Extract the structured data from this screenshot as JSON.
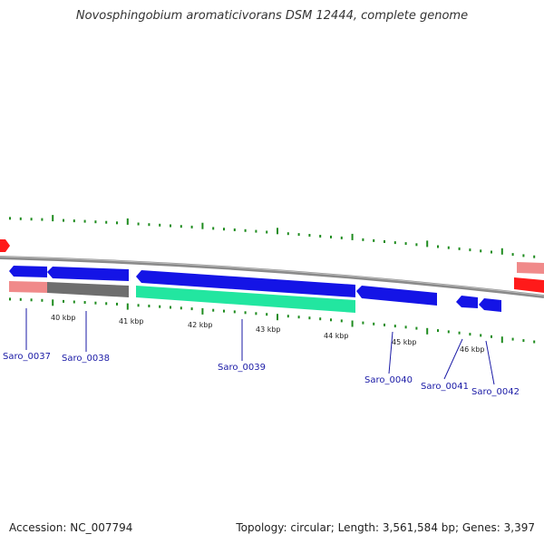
{
  "title": "Novosphingobium aromaticivorans DSM 12444, complete genome",
  "accession": "Accession: NC_007794",
  "summary": "Topology: circular; Length: 3,561,584 bp; Genes: 3,397",
  "colors": {
    "backbone": "#8a8a8a",
    "tick": "#1f8c1f",
    "gene_forward": "#1414e6",
    "gene_rrna": "#ff1a1a",
    "gene_pink": "#f08a8a",
    "gene_gray": "#6e6e6e",
    "gene_green": "#22e6a0",
    "label": "#1a1aa6"
  },
  "kbp_labels": [
    "40 kbp",
    "41 kbp",
    "42 kbp",
    "43 kbp",
    "44 kbp",
    "45 kbp",
    "46 kbp"
  ],
  "genes": [
    {
      "name": "Saro_0037"
    },
    {
      "name": "Saro_0038"
    },
    {
      "name": "Saro_0039"
    },
    {
      "name": "Saro_0040"
    },
    {
      "name": "Saro_0041"
    },
    {
      "name": "Saro_0042"
    }
  ]
}
